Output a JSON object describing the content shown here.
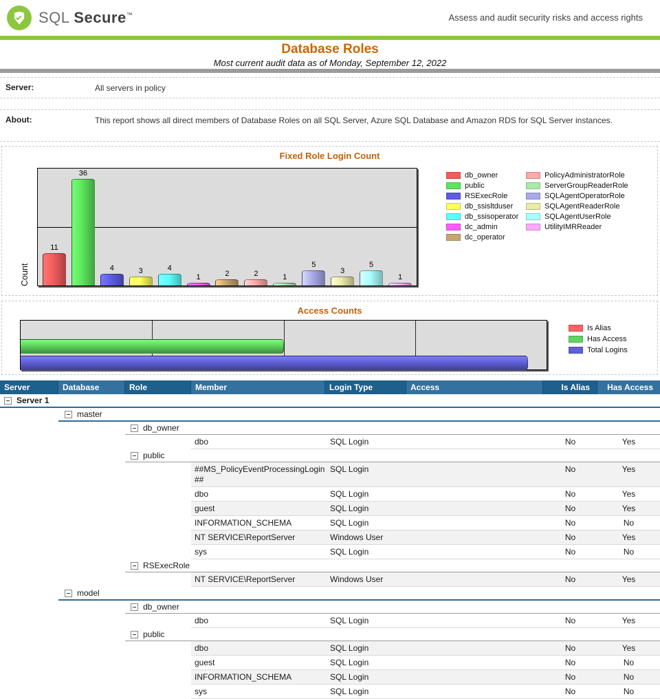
{
  "header": {
    "logo": {
      "sql": "SQL ",
      "secure": "Secure",
      "tm": "™"
    },
    "tagline": "Assess and audit security risks and access rights"
  },
  "report": {
    "title": "Database Roles",
    "subtitle": "Most current audit data as of Monday, September 12, 2022"
  },
  "sections": {
    "server": {
      "label": "Server:",
      "value": "All servers in policy"
    },
    "about": {
      "label": "About:",
      "value": "This report shows all direct members of Database Roles on all SQL Server, Azure SQL Database and Amazon RDS for SQL Server instances."
    }
  },
  "chart_data": [
    {
      "type": "bar",
      "title": "Fixed Role Login Count",
      "xlabel": "",
      "ylabel": "Count",
      "ylim": [
        0,
        40
      ],
      "gridlines": [
        20
      ],
      "legend_position": "right",
      "categories": [
        "db_owner",
        "public",
        "RSExecRole",
        "db_ssisltduser",
        "db_ssisoperator",
        "dc_admin",
        "dc_operator",
        "PolicyAdministratorRole",
        "ServerGroupReaderRole",
        "SQLAgentOperatorRole",
        "SQLAgentReaderRole",
        "SQLAgentUserRole",
        "UtilityIMRReader"
      ],
      "values": [
        11,
        36,
        4,
        3,
        4,
        1,
        2,
        2,
        1,
        5,
        3,
        5,
        1
      ],
      "colors": [
        "#F25C5C",
        "#5CE65C",
        "#5C5CE6",
        "#FFFF5C",
        "#5CFFFF",
        "#FF5CFF",
        "#C7A56F",
        "#FFA9A9",
        "#A9EAA9",
        "#A9A9EA",
        "#EAEAA9",
        "#A9FFFF",
        "#FFA9FF"
      ]
    },
    {
      "type": "bar",
      "orientation": "horizontal",
      "title": "Access Counts",
      "xlabel": "",
      "axis_note": "unlabeled axis divided into 4 equal sections",
      "xlim_percent": [
        0,
        100
      ],
      "legend_position": "right",
      "series": [
        {
          "name": "Is Alias",
          "color": "#F96464",
          "percent_of_axis": 0
        },
        {
          "name": "Has Access",
          "color": "#5FD45F",
          "percent_of_axis": 50
        },
        {
          "name": "Total Logins",
          "color": "#6060D8",
          "percent_of_axis": 96.5
        }
      ]
    }
  ],
  "table": {
    "columns": [
      "Server",
      "Database",
      "Role",
      "Member",
      "Login Type",
      "Access",
      "Is Alias",
      "Has Access"
    ],
    "rows": [
      {
        "type": "server",
        "label": "Server 1"
      },
      {
        "type": "database",
        "label": "master"
      },
      {
        "type": "role",
        "label": "db_owner"
      },
      {
        "type": "member",
        "member": "dbo",
        "login_type": "SQL Login",
        "access": "",
        "is_alias": "No",
        "has_access": "Yes",
        "shaded": false
      },
      {
        "type": "role",
        "label": "public"
      },
      {
        "type": "member",
        "member": "##MS_PolicyEventProcessingLogin##",
        "login_type": "SQL Login",
        "access": "",
        "is_alias": "No",
        "has_access": "Yes",
        "shaded": true
      },
      {
        "type": "member",
        "member": "dbo",
        "login_type": "SQL Login",
        "access": "",
        "is_alias": "No",
        "has_access": "Yes",
        "shaded": false
      },
      {
        "type": "member",
        "member": "guest",
        "login_type": "SQL Login",
        "access": "",
        "is_alias": "No",
        "has_access": "Yes",
        "shaded": true
      },
      {
        "type": "member",
        "member": "INFORMATION_SCHEMA",
        "login_type": "SQL Login",
        "access": "",
        "is_alias": "No",
        "has_access": "No",
        "shaded": false
      },
      {
        "type": "member",
        "member": "NT SERVICE\\ReportServer",
        "login_type": "Windows User",
        "access": "",
        "is_alias": "No",
        "has_access": "Yes",
        "shaded": true
      },
      {
        "type": "member",
        "member": "sys",
        "login_type": "SQL Login",
        "access": "",
        "is_alias": "No",
        "has_access": "No",
        "shaded": false
      },
      {
        "type": "role",
        "label": "RSExecRole"
      },
      {
        "type": "member",
        "member": "NT SERVICE\\ReportServer",
        "login_type": "Windows User",
        "access": "",
        "is_alias": "No",
        "has_access": "Yes",
        "shaded": true
      },
      {
        "type": "database",
        "label": "model"
      },
      {
        "type": "role",
        "label": "db_owner"
      },
      {
        "type": "member",
        "member": "dbo",
        "login_type": "SQL Login",
        "access": "",
        "is_alias": "No",
        "has_access": "Yes",
        "shaded": false
      },
      {
        "type": "role",
        "label": "public"
      },
      {
        "type": "member",
        "member": "dbo",
        "login_type": "SQL Login",
        "access": "",
        "is_alias": "No",
        "has_access": "Yes",
        "shaded": true
      },
      {
        "type": "member",
        "member": "guest",
        "login_type": "SQL Login",
        "access": "",
        "is_alias": "No",
        "has_access": "No",
        "shaded": false
      },
      {
        "type": "member",
        "member": "INFORMATION_SCHEMA",
        "login_type": "SQL Login",
        "access": "",
        "is_alias": "No",
        "has_access": "No",
        "shaded": true
      },
      {
        "type": "member",
        "member": "sys",
        "login_type": "SQL Login",
        "access": "",
        "is_alias": "No",
        "has_access": "No",
        "shaded": false
      }
    ]
  }
}
